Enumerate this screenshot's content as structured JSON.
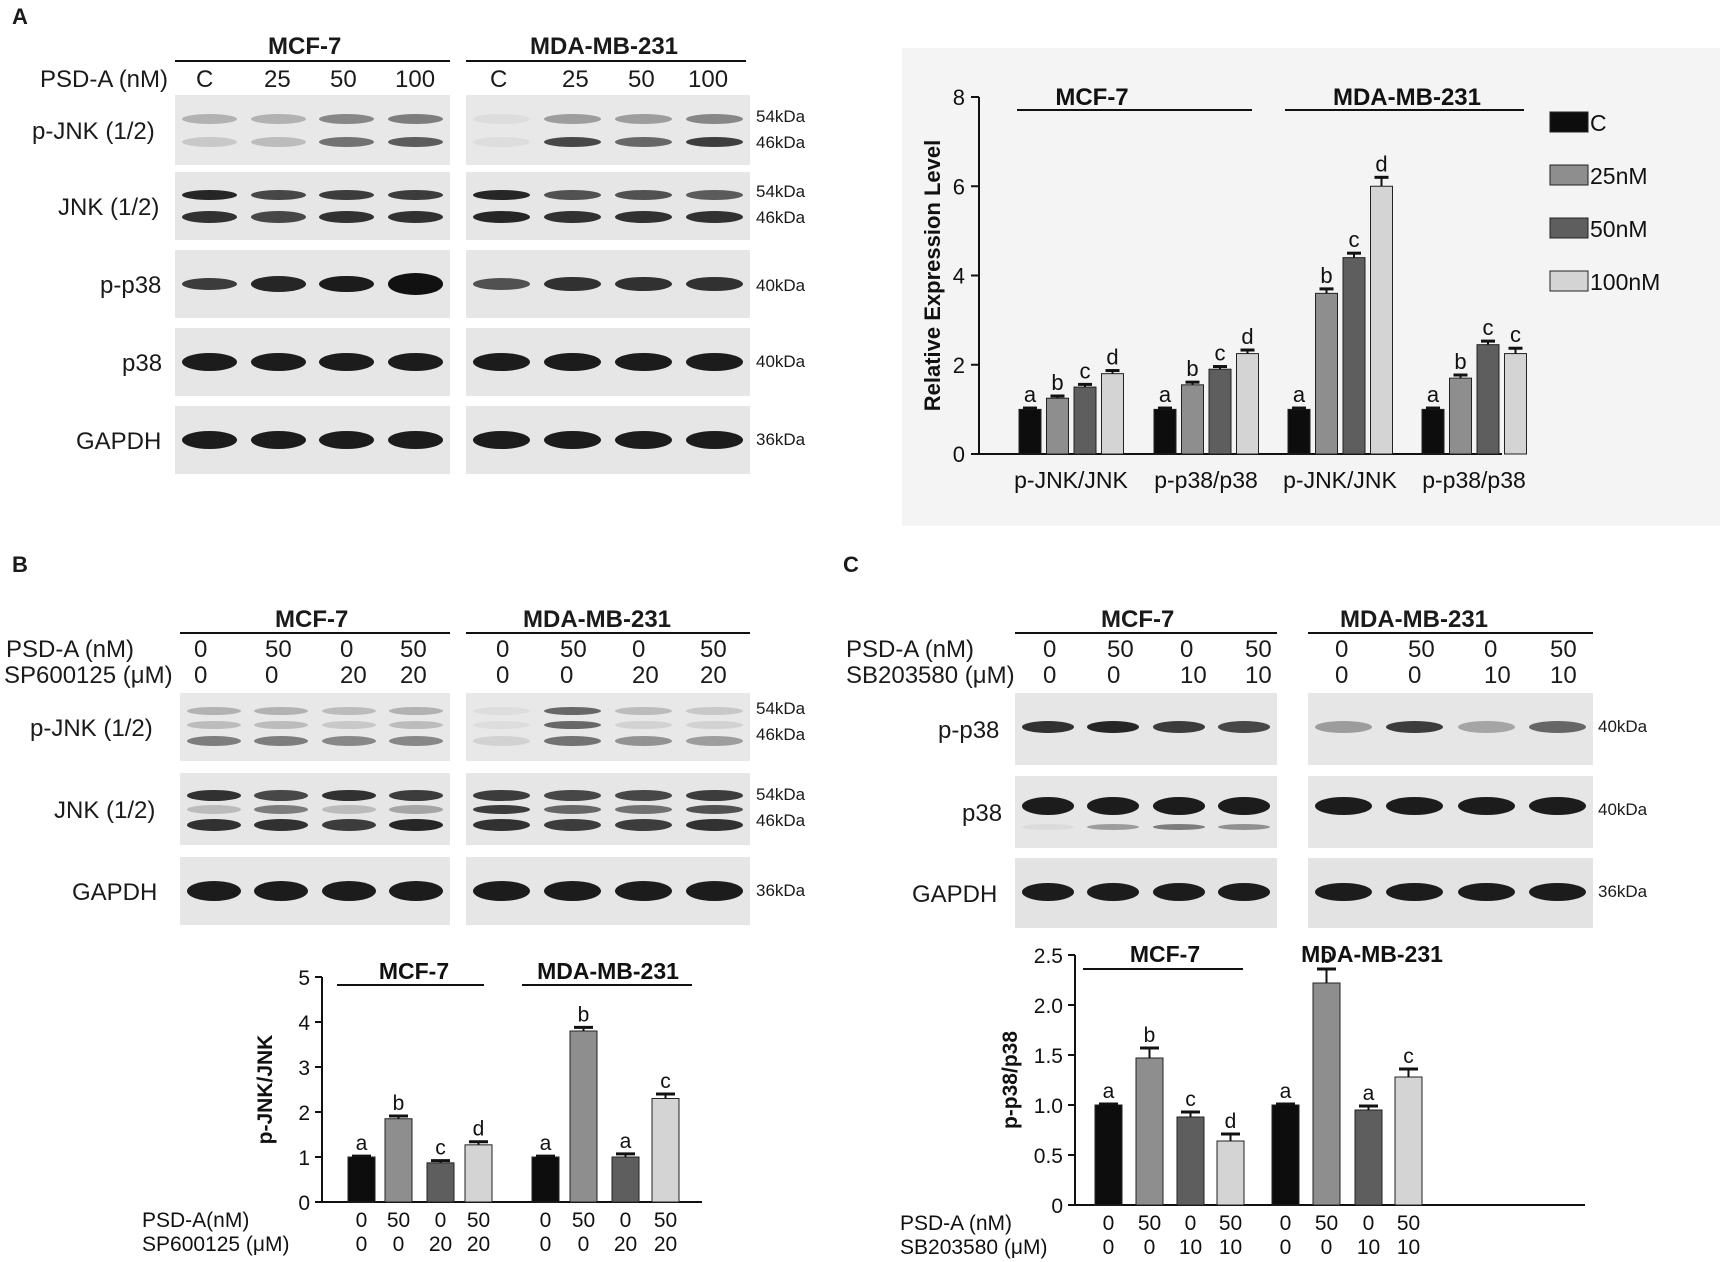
{
  "panelA": {
    "label": "A",
    "cell_lines": [
      "MCF-7",
      "MDA-MB-231"
    ],
    "conc_label": "PSD-A (nM)",
    "concs": [
      "C",
      "25",
      "50",
      "100"
    ],
    "rows": [
      "p-JNK (1/2)",
      "JNK (1/2)",
      "p-p38",
      "p38",
      "GAPDH"
    ],
    "kda": [
      [
        "54kDa",
        "46kDa"
      ],
      [
        "54kDa",
        "46kDa"
      ],
      [
        "40kDa"
      ],
      [
        "40kDa"
      ],
      [
        "36kDa"
      ]
    ]
  },
  "panelB": {
    "label": "B",
    "cell_lines": [
      "MCF-7",
      "MDA-MB-231"
    ],
    "row1_label": "PSD-A (nM)",
    "row1_vals": [
      "0",
      "50",
      "0",
      "50"
    ],
    "row2_label": "SP600125 (μM)",
    "row2_vals": [
      "0",
      "0",
      "20",
      "20"
    ],
    "rows": [
      "p-JNK (1/2)",
      "JNK (1/2)",
      "GAPDH"
    ],
    "kda": [
      [
        "54kDa",
        "46kDa"
      ],
      [
        "54kDa",
        "46kDa"
      ],
      [
        "36kDa"
      ]
    ],
    "chart_x1_label": "PSD-A(nM)",
    "chart_x2_label": "SP600125 (μM)"
  },
  "panelC": {
    "label": "C",
    "cell_lines": [
      "MCF-7",
      "MDA-MB-231"
    ],
    "row1_label": "PSD-A (nM)",
    "row1_vals": [
      "0",
      "50",
      "0",
      "50"
    ],
    "row2_label": "SB203580 (μM)",
    "row2_vals": [
      "0",
      "0",
      "10",
      "10"
    ],
    "rows": [
      "p-p38",
      "p38",
      "GAPDH"
    ],
    "kda": [
      [
        "40kDa"
      ],
      [
        "40kDa"
      ],
      [
        "36kDa"
      ]
    ],
    "chart_x1_label": "PSD-A (nM)",
    "chart_x2_label": "SB203580 (μM)"
  },
  "colors": {
    "c": "#0d0d0d",
    "c25": "#8e8e8e",
    "c50": "#5e5e5e",
    "c100": "#d4d4d4"
  },
  "chart_data": [
    {
      "type": "bar",
      "id": "A",
      "title": "",
      "ylabel": "Relative Expression Level",
      "ylim": [
        0,
        8
      ],
      "yticks": [
        0,
        2,
        4,
        6,
        8
      ],
      "group_headers": [
        "MCF-7",
        "MDA-MB-231"
      ],
      "categories": [
        "p-JNK/JNK",
        "p-p38/p38",
        "p-JNK/JNK",
        "p-p38/p38"
      ],
      "legend_position": "right",
      "series": [
        {
          "name": "C",
          "values": [
            1.0,
            1.0,
            1.0,
            1.0
          ],
          "letters": [
            "a",
            "a",
            "a",
            "a"
          ]
        },
        {
          "name": "25nM",
          "values": [
            1.25,
            1.55,
            3.6,
            1.7
          ],
          "letters": [
            "b",
            "b",
            "b",
            "b"
          ]
        },
        {
          "name": "50nM",
          "values": [
            1.5,
            1.9,
            4.4,
            2.45
          ],
          "letters": [
            "c",
            "c",
            "c",
            "c"
          ]
        },
        {
          "name": "100nM",
          "values": [
            1.8,
            2.25,
            6.0,
            2.25
          ],
          "letters": [
            "d",
            "d",
            "d",
            "c"
          ]
        }
      ],
      "errors": [
        [
          0.03,
          0.03,
          0.03,
          0.03
        ],
        [
          0.05,
          0.06,
          0.1,
          0.07
        ],
        [
          0.06,
          0.06,
          0.1,
          0.08
        ],
        [
          0.07,
          0.08,
          0.2,
          0.12
        ]
      ]
    },
    {
      "type": "bar",
      "id": "B",
      "ylabel": "p-JNK/JNK",
      "ylim": [
        0,
        5
      ],
      "yticks": [
        0,
        1,
        2,
        3,
        4,
        5
      ],
      "group_headers": [
        "MCF-7",
        "MDA-MB-231"
      ],
      "psd": [
        "0",
        "50",
        "0",
        "50",
        "0",
        "50",
        "0",
        "50"
      ],
      "inhib": [
        "0",
        "0",
        "20",
        "20",
        "0",
        "0",
        "20",
        "20"
      ],
      "values": [
        1.0,
        1.85,
        0.87,
        1.27,
        1.0,
        3.8,
        1.0,
        2.3
      ],
      "errors": [
        0.02,
        0.06,
        0.05,
        0.07,
        0.02,
        0.08,
        0.07,
        0.1
      ],
      "letters": [
        "a",
        "b",
        "c",
        "d",
        "a",
        "b",
        "a",
        "c"
      ],
      "colors": [
        "c",
        "c25",
        "c50",
        "c100",
        "c",
        "c25",
        "c50",
        "c100"
      ]
    },
    {
      "type": "bar",
      "id": "C",
      "ylabel": "p-p38/p38",
      "ylim": [
        0,
        2.5
      ],
      "yticks": [
        0,
        0.5,
        1.0,
        1.5,
        2.0,
        2.5
      ],
      "ytick_labels": [
        "0",
        "0.5",
        "1.0",
        "1.5",
        "2.0",
        "2.5"
      ],
      "group_headers": [
        "MCF-7",
        "MDA-MB-231"
      ],
      "psd": [
        "0",
        "50",
        "0",
        "50",
        "0",
        "50",
        "0",
        "50"
      ],
      "inhib": [
        "0",
        "0",
        "10",
        "10",
        "0",
        "0",
        "10",
        "10"
      ],
      "values": [
        1.0,
        1.47,
        0.88,
        0.64,
        1.0,
        2.22,
        0.95,
        1.28
      ],
      "errors": [
        0.01,
        0.1,
        0.05,
        0.07,
        0.01,
        0.14,
        0.04,
        0.08
      ],
      "letters": [
        "a",
        "b",
        "c",
        "d",
        "a",
        "b",
        "a",
        "c"
      ],
      "colors": [
        "c",
        "c25",
        "c50",
        "c100",
        "c",
        "c25",
        "c50",
        "c100"
      ]
    }
  ]
}
